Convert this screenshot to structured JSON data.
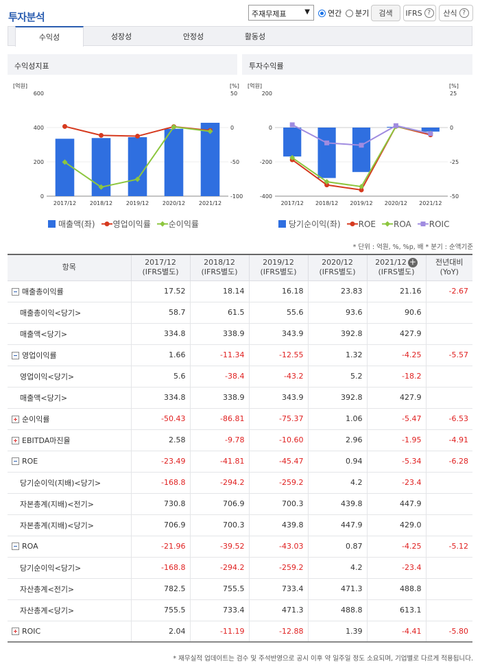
{
  "header": {
    "title": "투자분석",
    "statement_select": "주재무제표",
    "radio_annual": "연간",
    "radio_quarter": "분기",
    "search_button": "검색",
    "ifrs_button": "IFRS",
    "formula_button": "산식"
  },
  "tabs": [
    "수익성",
    "성장성",
    "안정성",
    "활동성"
  ],
  "panels": {
    "left_title": "수익성지표",
    "right_title": "투자수익률"
  },
  "legend_left": [
    "매출액(좌)",
    "영업이익률",
    "순이익률"
  ],
  "legend_right": [
    "당기순이익(좌)",
    "ROE",
    "ROA",
    "ROIC"
  ],
  "colors": {
    "bar": "#2f6fe0",
    "red": "#d63a1f",
    "green": "#8dc63f",
    "purple": "#a08ce0",
    "neg": "#e02020",
    "accent": "#2a5db0"
  },
  "chart_data": [
    {
      "type": "bar",
      "title": "수익성지표",
      "categories": [
        "2017/12",
        "2018/12",
        "2019/12",
        "2020/12",
        "2021/12"
      ],
      "left_unit": "[억원]",
      "right_unit": "[%]",
      "left_ticks": [
        "600",
        "400",
        "200",
        "0"
      ],
      "right_ticks": [
        "50",
        "0",
        "-50",
        "-100"
      ],
      "ylim_left": [
        0,
        600
      ],
      "ylim_right": [
        -100,
        50
      ],
      "series": [
        {
          "name": "매출액(좌)",
          "kind": "bar",
          "axis": "left",
          "values": [
            334.8,
            338.9,
            343.9,
            392.8,
            427.9
          ]
        },
        {
          "name": "영업이익률",
          "kind": "line",
          "axis": "right",
          "values": [
            1.66,
            -11.34,
            -12.55,
            1.32,
            -4.25
          ]
        },
        {
          "name": "순이익률",
          "kind": "line",
          "axis": "right",
          "values": [
            -50.43,
            -86.81,
            -75.37,
            1.06,
            -5.47
          ]
        }
      ]
    },
    {
      "type": "bar",
      "title": "투자수익률",
      "categories": [
        "2017/12",
        "2018/12",
        "2019/12",
        "2020/12",
        "2021/12"
      ],
      "left_unit": "[억원]",
      "right_unit": "[%]",
      "left_ticks": [
        "200",
        "0",
        "-200",
        "-400"
      ],
      "right_ticks": [
        "25",
        "0",
        "-25",
        "-50"
      ],
      "ylim_left": [
        -400,
        200
      ],
      "ylim_right": [
        -50,
        25
      ],
      "series": [
        {
          "name": "당기순이익(좌)",
          "kind": "bar",
          "axis": "left",
          "values": [
            -168.8,
            -294.2,
            -259.2,
            4.2,
            -23.4
          ]
        },
        {
          "name": "ROE",
          "kind": "line",
          "axis": "right",
          "values": [
            -23.49,
            -41.81,
            -45.47,
            0.94,
            -5.34
          ]
        },
        {
          "name": "ROA",
          "kind": "line",
          "axis": "right",
          "values": [
            -21.96,
            -39.52,
            -43.03,
            0.87,
            -4.25
          ]
        },
        {
          "name": "ROIC",
          "kind": "line",
          "axis": "right",
          "values": [
            2.04,
            -11.19,
            -12.88,
            1.39,
            -4.41
          ]
        }
      ]
    }
  ],
  "unit_note": "* 단위 : 억원, %, %p, 배   * 분기 : 순액기준",
  "table": {
    "col_item": "항목",
    "columns": [
      [
        "2017/12",
        "(IFRS별도)"
      ],
      [
        "2018/12",
        "(IFRS별도)"
      ],
      [
        "2019/12",
        "(IFRS별도)"
      ],
      [
        "2020/12",
        "(IFRS별도)"
      ],
      [
        "2021/12",
        "(IFRS별도)"
      ]
    ],
    "col_yoy": [
      "전년대비",
      "(YoY)"
    ],
    "rows": [
      {
        "label": "매출총이익률",
        "toggle": "minus",
        "values": [
          "17.52",
          "18.14",
          "16.18",
          "23.83",
          "21.16"
        ],
        "yoy": "-2.67"
      },
      {
        "label": "매출총이익<당기>",
        "sub": true,
        "values": [
          "58.7",
          "61.5",
          "55.6",
          "93.6",
          "90.6"
        ],
        "yoy": ""
      },
      {
        "label": "매출액<당기>",
        "sub": true,
        "values": [
          "334.8",
          "338.9",
          "343.9",
          "392.8",
          "427.9"
        ],
        "yoy": ""
      },
      {
        "label": "영업이익률",
        "toggle": "minus",
        "values": [
          "1.66",
          "-11.34",
          "-12.55",
          "1.32",
          "-4.25"
        ],
        "yoy": "-5.57"
      },
      {
        "label": "영업이익<당기>",
        "sub": true,
        "values": [
          "5.6",
          "-38.4",
          "-43.2",
          "5.2",
          "-18.2"
        ],
        "yoy": ""
      },
      {
        "label": "매출액<당기>",
        "sub": true,
        "values": [
          "334.8",
          "338.9",
          "343.9",
          "392.8",
          "427.9"
        ],
        "yoy": ""
      },
      {
        "label": "순이익률",
        "toggle": "plus",
        "values": [
          "-50.43",
          "-86.81",
          "-75.37",
          "1.06",
          "-5.47"
        ],
        "yoy": "-6.53"
      },
      {
        "label": "EBITDA마진율",
        "toggle": "plus",
        "values": [
          "2.58",
          "-9.78",
          "-10.60",
          "2.96",
          "-1.95"
        ],
        "yoy": "-4.91"
      },
      {
        "label": "ROE",
        "toggle": "minus",
        "values": [
          "-23.49",
          "-41.81",
          "-45.47",
          "0.94",
          "-5.34"
        ],
        "yoy": "-6.28"
      },
      {
        "label": "당기순이익(지배)<당기>",
        "sub": true,
        "values": [
          "-168.8",
          "-294.2",
          "-259.2",
          "4.2",
          "-23.4"
        ],
        "yoy": ""
      },
      {
        "label": "자본총계(지배)<전기>",
        "sub": true,
        "values": [
          "730.8",
          "706.9",
          "700.3",
          "439.8",
          "447.9"
        ],
        "yoy": ""
      },
      {
        "label": "자본총계(지배)<당기>",
        "sub": true,
        "values": [
          "706.9",
          "700.3",
          "439.8",
          "447.9",
          "429.0"
        ],
        "yoy": ""
      },
      {
        "label": "ROA",
        "toggle": "minus",
        "values": [
          "-21.96",
          "-39.52",
          "-43.03",
          "0.87",
          "-4.25"
        ],
        "yoy": "-5.12"
      },
      {
        "label": "당기순이익<당기>",
        "sub": true,
        "values": [
          "-168.8",
          "-294.2",
          "-259.2",
          "4.2",
          "-23.4"
        ],
        "yoy": ""
      },
      {
        "label": "자산총계<전기>",
        "sub": true,
        "values": [
          "782.5",
          "755.5",
          "733.4",
          "471.3",
          "488.8"
        ],
        "yoy": ""
      },
      {
        "label": "자산총계<당기>",
        "sub": true,
        "values": [
          "755.5",
          "733.4",
          "471.3",
          "488.8",
          "613.1"
        ],
        "yoy": ""
      },
      {
        "label": "ROIC",
        "toggle": "plus",
        "values": [
          "2.04",
          "-11.19",
          "-12.88",
          "1.39",
          "-4.41"
        ],
        "yoy": "-5.80"
      }
    ]
  },
  "footnote": "* 재무실적 업데이트는 검수 및 주석반영으로 공시 이후 약 일주일 정도 소요되며, 기업별로 다르게 적용됩니다."
}
